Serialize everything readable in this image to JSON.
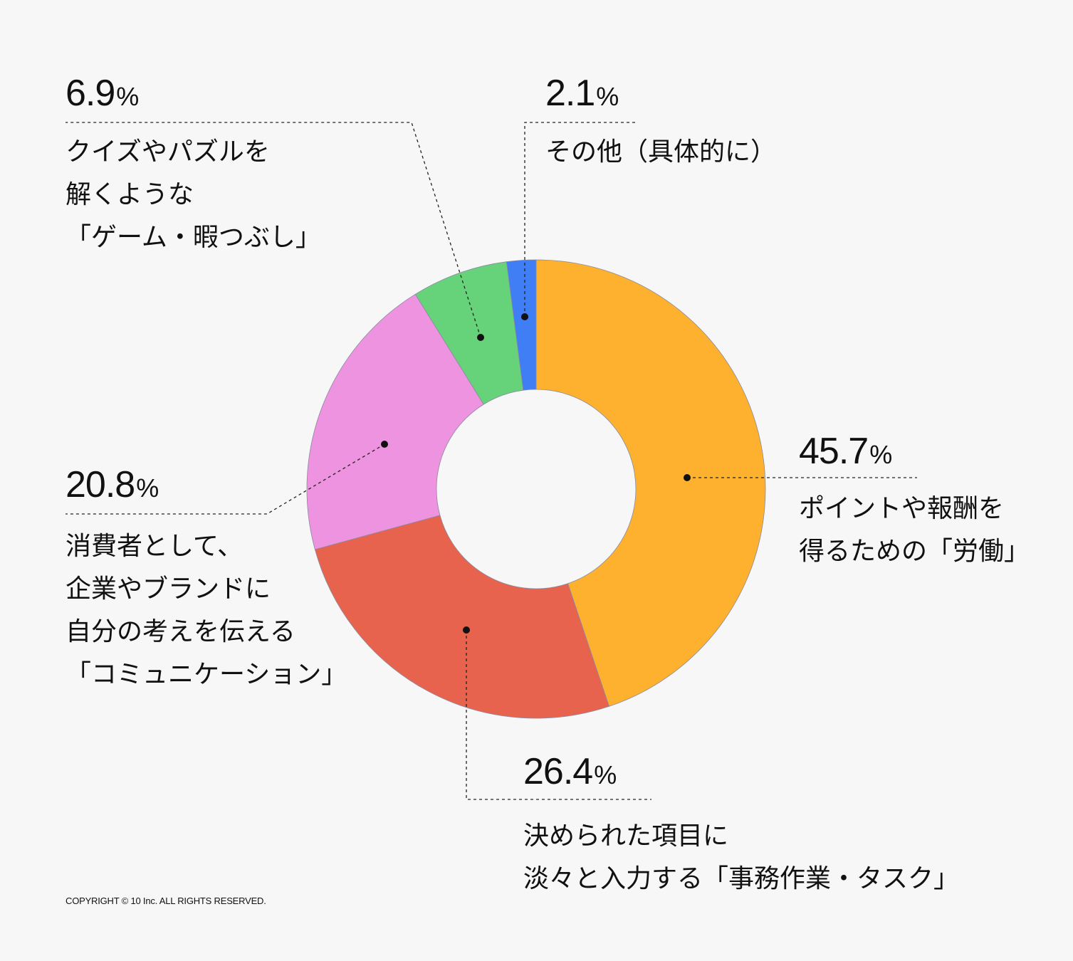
{
  "chart_data": {
    "type": "pie",
    "variant": "donut",
    "start": "top, clockwise",
    "slices": [
      {
        "value": 45.7,
        "unit": "%",
        "label": [
          "ポイントや報酬を",
          "得るための「労働」"
        ],
        "color": "#FDB12E"
      },
      {
        "value": 26.4,
        "unit": "%",
        "label": [
          "決められた項目に",
          "淡々と入力する「事務作業・タスク」"
        ],
        "color": "#E8634E"
      },
      {
        "value": 20.8,
        "unit": "%",
        "label": [
          "消費者として、",
          "企業やブランドに",
          "自分の考えを伝える",
          "「コミュニケーション」"
        ],
        "color": "#EE93E0"
      },
      {
        "value": 6.9,
        "unit": "%",
        "label": [
          "クイズやパズルを",
          "解くような",
          "「ゲーム・暇つぶし」"
        ],
        "color": "#66D37A"
      },
      {
        "value": 2.1,
        "unit": "%",
        "label": [
          "その他（具体的に）"
        ],
        "color": "#3F7EF5"
      }
    ]
  },
  "footer": {
    "copyright": "COPYRIGHT © 10 Inc. ALL RIGHTS RESERVED."
  }
}
